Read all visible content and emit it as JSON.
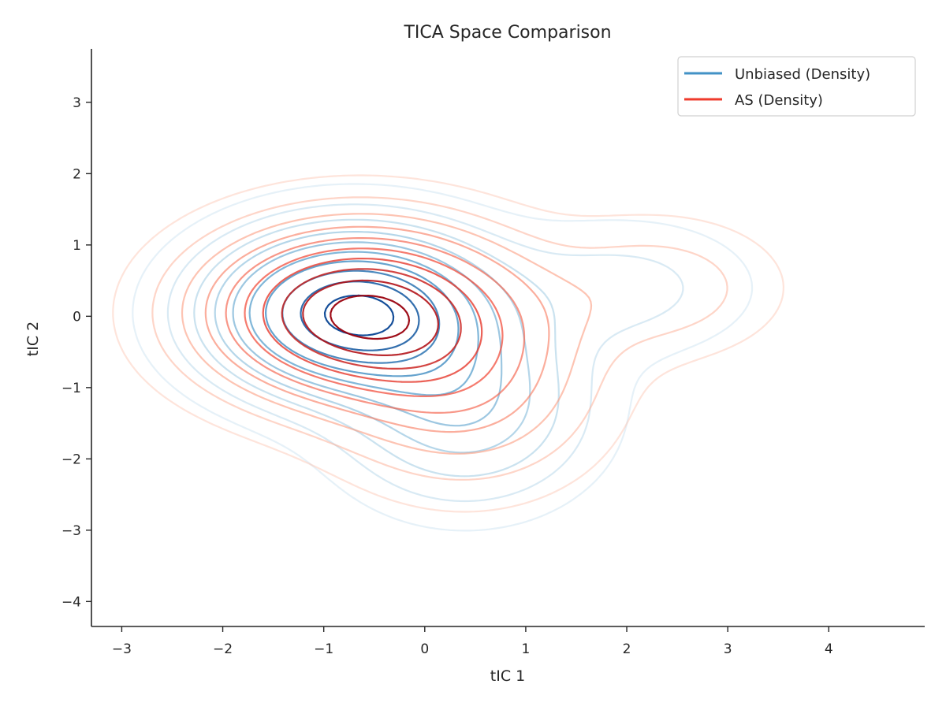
{
  "chart_data": {
    "type": "contour",
    "title": "TICA Space Comparison",
    "xlabel": "tIC 1",
    "ylabel": "tIC 2",
    "xlim": [
      -3.3,
      4.95
    ],
    "ylim": [
      -4.35,
      3.75
    ],
    "xticks": [
      -3,
      -2,
      -1,
      0,
      1,
      2,
      3,
      4
    ],
    "yticks": [
      -4,
      -3,
      -2,
      -1,
      0,
      1,
      2,
      3
    ],
    "xtick_labels": [
      "−3",
      "−2",
      "−1",
      "0",
      "1",
      "2",
      "3",
      "4"
    ],
    "ytick_labels": [
      "−4",
      "−3",
      "−2",
      "−1",
      "0",
      "1",
      "2",
      "3"
    ],
    "grid": false,
    "legend_position": "top-right",
    "series": [
      {
        "name": "Unbiased (Density)",
        "color": "#4292c6",
        "colormap": "Blues",
        "levels": 10,
        "components": [
          {
            "center": [
              -0.7,
              0.05
            ],
            "spread": [
              0.85,
              0.7
            ],
            "weight": 1.0
          },
          {
            "center": [
              0.4,
              -1.3
            ],
            "spread": [
              0.75,
              0.8
            ],
            "weight": 0.35
          },
          {
            "center": [
              2.0,
              0.4
            ],
            "spread": [
              0.8,
              0.6
            ],
            "weight": 0.12
          }
        ]
      },
      {
        "name": "AS (Density)",
        "color": "#ef3b2c",
        "colormap": "Reds",
        "levels": 10,
        "components": [
          {
            "center": [
              -0.65,
              0.05
            ],
            "spread": [
              0.95,
              0.75
            ],
            "weight": 1.0
          },
          {
            "center": [
              0.4,
              -1.0
            ],
            "spread": [
              0.8,
              0.85
            ],
            "weight": 0.3
          },
          {
            "center": [
              2.3,
              0.4
            ],
            "spread": [
              0.75,
              0.6
            ],
            "weight": 0.15
          }
        ]
      }
    ]
  }
}
